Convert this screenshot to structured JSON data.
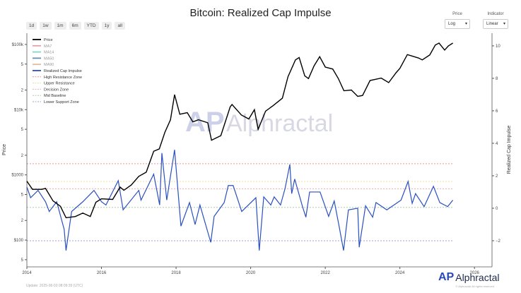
{
  "title": "Bitcoin: Realized Cap Impulse",
  "range_buttons": [
    "1d",
    "1w",
    "1m",
    "6m",
    "YTD",
    "1y",
    "all"
  ],
  "controls": {
    "price_label": "Price",
    "price_value": "Log",
    "indicator_label": "Indicator",
    "indicator_value": "Linear"
  },
  "footer": {
    "update": "Update: 2025-06-03 08:09:39 (UTC)",
    "brand": "Alphractal",
    "copyright": "© Alphractal All rights reserved"
  },
  "watermark": "Alphractal",
  "colors": {
    "price": "#000000",
    "impulse": "#2a4fc0",
    "ma7": "#e8a0a8",
    "ma14": "#7fd8c8",
    "ma50": "#6a8fb0",
    "ma90": "#e8b89a",
    "high": "#e39a9a",
    "upper": "#e8e0a0",
    "decision": "#e0b0c0",
    "mid": "#a8d0a8",
    "lower": "#a0a0d8"
  },
  "chart_data": {
    "type": "line",
    "title": "Bitcoin: Realized Cap Impulse",
    "xlabel": "",
    "ylabel": "Price",
    "y2label": "Realized Cap Impulse",
    "xlim": [
      2014,
      2026.47
    ],
    "x_ticks": [
      "2014",
      "2016",
      "2018",
      "2020",
      "2022",
      "2024",
      "2026"
    ],
    "y_log_range": [
      1.589,
      5.173
    ],
    "y_ticks": [
      {
        "v": 100000,
        "l": "$100k"
      },
      {
        "v": 50000,
        "l": "5"
      },
      {
        "v": 20000,
        "l": "2"
      },
      {
        "v": 10000,
        "l": "$10k"
      },
      {
        "v": 5000,
        "l": "5"
      },
      {
        "v": 2000,
        "l": "2"
      },
      {
        "v": 1000,
        "l": "$1000"
      },
      {
        "v": 500,
        "l": "5"
      },
      {
        "v": 200,
        "l": "2"
      },
      {
        "v": 100,
        "l": "$100"
      },
      {
        "v": 50,
        "l": "5"
      }
    ],
    "y2lim": [
      -3.61,
      10.78
    ],
    "y2_ticks": [
      "10",
      "8",
      "6",
      "4",
      "2",
      "0",
      "−2"
    ],
    "y2_tick_values": [
      10,
      8,
      6,
      4,
      2,
      0,
      -2
    ],
    "legend": [
      "Price",
      "MA7",
      "MA14",
      "MA50",
      "MA90",
      "Realized Cap Impulse",
      "High Resistance Zone",
      "Upper Resistance",
      "Decision Zone",
      "Mid Baseline",
      "Lower Support Zone"
    ],
    "legend_position": "top-left",
    "zones": {
      "high": 2.74,
      "upper": 1.65,
      "decision": 1.2,
      "mid": 0.05,
      "lower": -2.0
    },
    "price": [
      [
        2014.0,
        800
      ],
      [
        2014.15,
        600
      ],
      [
        2014.4,
        600
      ],
      [
        2014.5,
        620
      ],
      [
        2014.7,
        400
      ],
      [
        2014.9,
        330
      ],
      [
        2015.05,
        220
      ],
      [
        2015.3,
        230
      ],
      [
        2015.5,
        260
      ],
      [
        2015.7,
        230
      ],
      [
        2015.85,
        380
      ],
      [
        2016.0,
        430
      ],
      [
        2016.3,
        420
      ],
      [
        2016.5,
        650
      ],
      [
        2016.6,
        580
      ],
      [
        2016.8,
        700
      ],
      [
        2017.0,
        950
      ],
      [
        2017.2,
        1100
      ],
      [
        2017.4,
        2300
      ],
      [
        2017.55,
        2500
      ],
      [
        2017.7,
        4500
      ],
      [
        2017.85,
        7000
      ],
      [
        2017.96,
        17000
      ],
      [
        2018.1,
        8500
      ],
      [
        2018.3,
        9000
      ],
      [
        2018.45,
        6500
      ],
      [
        2018.6,
        7000
      ],
      [
        2018.85,
        6300
      ],
      [
        2018.95,
        3400
      ],
      [
        2019.2,
        4000
      ],
      [
        2019.45,
        11000
      ],
      [
        2019.5,
        12000
      ],
      [
        2019.75,
        8300
      ],
      [
        2019.95,
        7200
      ],
      [
        2020.1,
        10000
      ],
      [
        2020.2,
        5000
      ],
      [
        2020.4,
        9500
      ],
      [
        2020.6,
        11500
      ],
      [
        2020.85,
        15000
      ],
      [
        2021.0,
        32000
      ],
      [
        2021.2,
        58000
      ],
      [
        2021.3,
        63000
      ],
      [
        2021.45,
        33000
      ],
      [
        2021.55,
        30000
      ],
      [
        2021.7,
        47000
      ],
      [
        2021.85,
        65000
      ],
      [
        2022.0,
        45000
      ],
      [
        2022.2,
        42000
      ],
      [
        2022.35,
        30000
      ],
      [
        2022.5,
        19500
      ],
      [
        2022.7,
        20000
      ],
      [
        2022.87,
        16000
      ],
      [
        2023.0,
        16500
      ],
      [
        2023.2,
        28000
      ],
      [
        2023.5,
        30500
      ],
      [
        2023.7,
        26000
      ],
      [
        2023.9,
        37000
      ],
      [
        2024.0,
        43000
      ],
      [
        2024.2,
        70000
      ],
      [
        2024.5,
        62000
      ],
      [
        2024.6,
        58000
      ],
      [
        2024.8,
        69000
      ],
      [
        2024.95,
        98000
      ],
      [
        2025.05,
        105000
      ],
      [
        2025.2,
        82000
      ],
      [
        2025.3,
        95000
      ],
      [
        2025.42,
        105000
      ]
    ],
    "impulse": [
      [
        2014.0,
        1.3
      ],
      [
        2014.1,
        0.65
      ],
      [
        2014.3,
        1.1
      ],
      [
        2014.5,
        0.4
      ],
      [
        2014.6,
        -0.2
      ],
      [
        2014.8,
        0.4
      ],
      [
        2015.0,
        -1.3
      ],
      [
        2015.05,
        -2.6
      ],
      [
        2015.2,
        -0.2
      ],
      [
        2015.5,
        0.4
      ],
      [
        2015.8,
        1.1
      ],
      [
        2016.0,
        0.4
      ],
      [
        2016.12,
        0.2
      ],
      [
        2016.45,
        1.7
      ],
      [
        2016.58,
        -0.1
      ],
      [
        2017.0,
        1.1
      ],
      [
        2017.06,
        0.5
      ],
      [
        2017.4,
        2.1
      ],
      [
        2017.56,
        0.2
      ],
      [
        2017.62,
        3.4
      ],
      [
        2017.75,
        0.5
      ],
      [
        2017.96,
        3.6
      ],
      [
        2018.13,
        -1.1
      ],
      [
        2018.36,
        0.35
      ],
      [
        2018.51,
        -1.0
      ],
      [
        2018.64,
        0.2
      ],
      [
        2018.93,
        -2.1
      ],
      [
        2019.02,
        -0.5
      ],
      [
        2019.29,
        0.35
      ],
      [
        2019.4,
        1.4
      ],
      [
        2019.53,
        1.4
      ],
      [
        2019.76,
        -0.2
      ],
      [
        2020.14,
        0.65
      ],
      [
        2020.23,
        -2.6
      ],
      [
        2020.35,
        0.7
      ],
      [
        2020.54,
        0.2
      ],
      [
        2020.63,
        0.7
      ],
      [
        2020.8,
        0.2
      ],
      [
        2020.92,
        1.2
      ],
      [
        2021.05,
        2.7
      ],
      [
        2021.1,
        0.9
      ],
      [
        2021.18,
        1.8
      ],
      [
        2021.39,
        0.1
      ],
      [
        2021.48,
        -0.55
      ],
      [
        2021.58,
        1.0
      ],
      [
        2021.86,
        1.0
      ],
      [
        2022.09,
        -0.5
      ],
      [
        2022.24,
        0.45
      ],
      [
        2022.37,
        -1.1
      ],
      [
        2022.49,
        -2.6
      ],
      [
        2022.62,
        -0.1
      ],
      [
        2022.87,
        0.0
      ],
      [
        2022.91,
        -2.4
      ],
      [
        2023.08,
        0.15
      ],
      [
        2023.27,
        -0.55
      ],
      [
        2023.36,
        0.35
      ],
      [
        2023.65,
        -0.1
      ],
      [
        2024.03,
        0.5
      ],
      [
        2024.22,
        1.65
      ],
      [
        2024.33,
        0.3
      ],
      [
        2024.42,
        0.9
      ],
      [
        2024.65,
        0.1
      ],
      [
        2024.9,
        1.35
      ],
      [
        2025.07,
        0.35
      ],
      [
        2025.28,
        0.1
      ],
      [
        2025.42,
        0.5
      ]
    ]
  }
}
